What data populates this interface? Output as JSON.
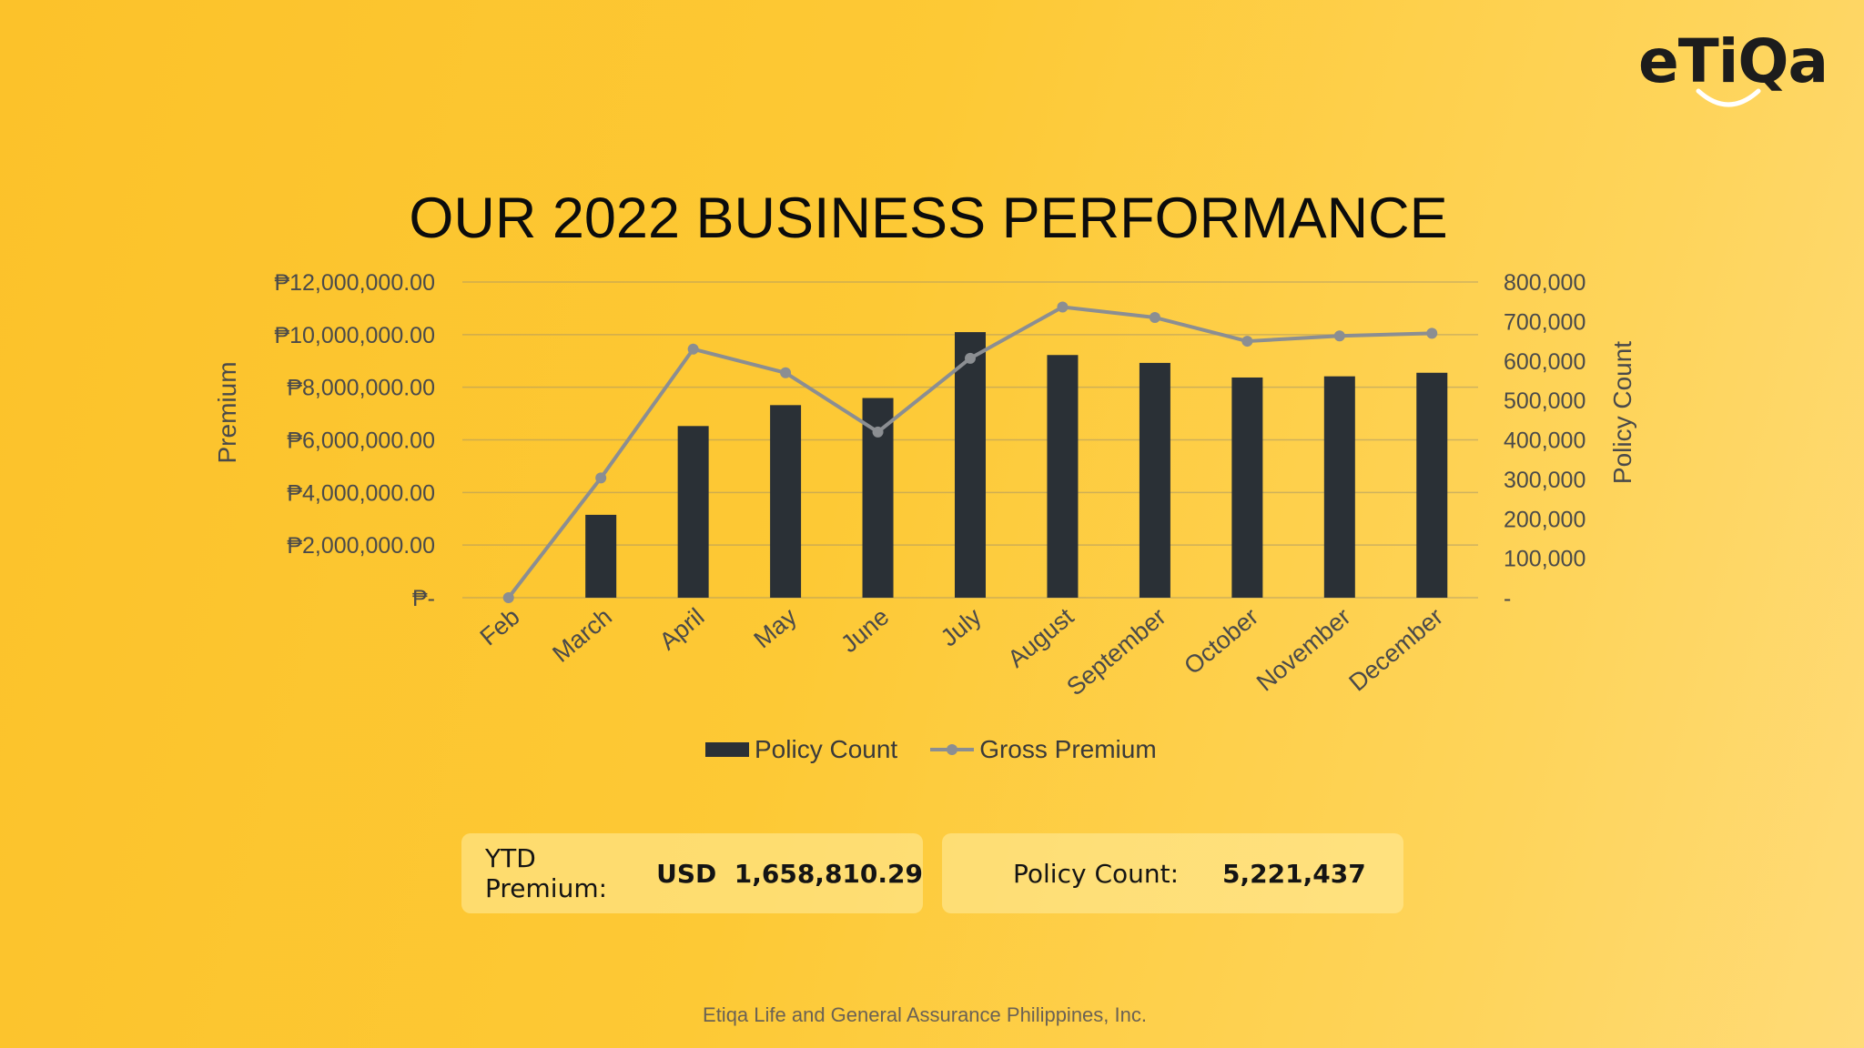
{
  "logo": {
    "text": "eTiQa"
  },
  "slide": {
    "title": "OUR 2022 BUSINESS PERFORMANCE"
  },
  "chart_data": {
    "type": "bar+line",
    "categories": [
      "Feb",
      "March",
      "April",
      "May",
      "June",
      "July",
      "August",
      "September",
      "October",
      "November",
      "December"
    ],
    "series": [
      {
        "name": "Policy Count",
        "kind": "bar",
        "axis": "right",
        "color": "#2a3036",
        "values": [
          0,
          210000,
          435000,
          488000,
          506000,
          673000,
          615000,
          595000,
          558000,
          561000,
          570000
        ]
      },
      {
        "name": "Gross Premium",
        "kind": "line",
        "axis": "left",
        "color": "#8b8e92",
        "values": [
          0,
          4550000,
          9450000,
          8550000,
          6300000,
          9100000,
          11050000,
          10650000,
          9750000,
          9950000,
          10050000
        ]
      }
    ],
    "ylabel": "Premium",
    "y2label": "Policy Count",
    "ylim": [
      0,
      12000000
    ],
    "y2lim": [
      0,
      800000
    ],
    "yticks": [
      "₱-",
      "₱2,000,000.00",
      "₱4,000,000.00",
      "₱6,000,000.00",
      "₱8,000,000.00",
      "₱10,000,000.00",
      "₱12,000,000.00"
    ],
    "y2ticks": [
      "-",
      "100,000",
      "200,000",
      "300,000",
      "400,000",
      "500,000",
      "600,000",
      "700,000",
      "800,000"
    ],
    "grid": true,
    "legend": "bottom"
  },
  "stats": {
    "premium_label": "YTD Premium:",
    "premium_value": "USD  1,658,810.29",
    "count_label": "Policy Count:",
    "count_value": "5,221,437"
  },
  "footer": {
    "text": "Etiqa Life and General Assurance Philippines, Inc."
  }
}
